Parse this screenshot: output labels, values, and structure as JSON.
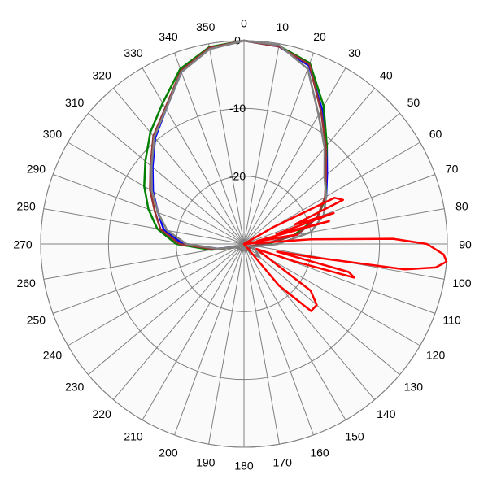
{
  "chart_data": {
    "type": "polar",
    "rlim": [
      -30,
      0
    ],
    "rticks": [
      0,
      -10,
      -20
    ],
    "thetaticks": [
      0,
      10,
      20,
      30,
      40,
      50,
      60,
      70,
      80,
      90,
      100,
      110,
      120,
      130,
      140,
      150,
      160,
      170,
      180,
      190,
      200,
      210,
      220,
      230,
      240,
      250,
      260,
      270,
      280,
      290,
      300,
      310,
      320,
      330,
      340,
      350
    ],
    "series": [
      {
        "color": "#0000ff",
        "theta": [
          0,
          10,
          20,
          30,
          40,
          50,
          60,
          70,
          80,
          90,
          100,
          110,
          120,
          130,
          140,
          150,
          160,
          170,
          180,
          190,
          200,
          210,
          220,
          230,
          240,
          250,
          260,
          270,
          280,
          290,
          300,
          310,
          320,
          330,
          340,
          350,
          360
        ],
        "values": [
          0,
          -0.4,
          -2,
          -7,
          -11,
          -14,
          -16,
          -18.5,
          -22,
          -27,
          -28.5,
          -29,
          -29,
          -29,
          -29,
          -29,
          -29,
          -29,
          -29,
          -29,
          -29,
          -29,
          -29,
          -29,
          -29,
          -28.5,
          -26,
          -21,
          -18,
          -16.5,
          -14.5,
          -12.4,
          -9.6,
          -7,
          -3,
          -0.6,
          0
        ]
      },
      {
        "color": "#008000",
        "theta": [
          0,
          10,
          20,
          30,
          40,
          50,
          60,
          70,
          80,
          90,
          100,
          110,
          120,
          130,
          140,
          150,
          160,
          170,
          180,
          190,
          200,
          210,
          220,
          230,
          240,
          250,
          260,
          270,
          280,
          290,
          300,
          310,
          320,
          330,
          340,
          350,
          360
        ],
        "values": [
          0,
          -0.3,
          -1.6,
          -6.5,
          -11,
          -14.3,
          -16,
          -18.5,
          -22.5,
          -26.5,
          -28.5,
          -29,
          -29,
          -29,
          -29,
          -29,
          -29,
          -29,
          -29,
          -29,
          -29,
          -29,
          -29,
          -29,
          -29,
          -28.5,
          -25,
          -20,
          -17,
          -15,
          -13,
          -11,
          -8.5,
          -6,
          -2.5,
          -0.5,
          0
        ]
      },
      {
        "color": "#993333",
        "theta": [
          0,
          10,
          20,
          30,
          40,
          50,
          60,
          70,
          80,
          90,
          100,
          110,
          120,
          130,
          140,
          150,
          160,
          170,
          180,
          190,
          200,
          210,
          220,
          230,
          240,
          250,
          260,
          270,
          280,
          290,
          300,
          310,
          320,
          330,
          340,
          350,
          360
        ],
        "values": [
          0,
          -0.4,
          -1.8,
          -7.3,
          -11.2,
          -14.2,
          -16.2,
          -18.5,
          -22,
          -27,
          -28.5,
          -29,
          -29,
          -29,
          -29,
          -29,
          -29,
          -29,
          -29,
          -29,
          -29,
          -29,
          -29,
          -29,
          -29,
          -28.5,
          -25.5,
          -20.5,
          -17.5,
          -16,
          -14,
          -12,
          -9.2,
          -6.8,
          -2.8,
          -0.6,
          0
        ]
      },
      {
        "color": "#808080",
        "theta": [
          0,
          10,
          20,
          30,
          40,
          50,
          60,
          70,
          80,
          90,
          100,
          110,
          120,
          130,
          140,
          150,
          160,
          170,
          180,
          190,
          200,
          210,
          220,
          230,
          240,
          250,
          260,
          270,
          280,
          290,
          300,
          310,
          320,
          330,
          340,
          350,
          360
        ],
        "values": [
          0,
          -0.2,
          -2.5,
          -8,
          -11.5,
          -14.5,
          -16,
          -17.5,
          -20,
          -25,
          -28,
          -29,
          -28,
          -27,
          -28,
          -29,
          -29,
          -29,
          -29,
          -29,
          -29,
          -29,
          -29,
          -29,
          -29,
          -28.5,
          -26,
          -21.5,
          -18.5,
          -16.5,
          -14.3,
          -12.2,
          -9.4,
          -7,
          -3,
          -0.8,
          0
        ]
      },
      {
        "color": "#ff0000",
        "theta": [
          0,
          40,
          60,
          63,
          66,
          69,
          71,
          73,
          75,
          77,
          80,
          83,
          86,
          88,
          90,
          93,
          95,
          97,
          99,
          101,
          103,
          105,
          107,
          109,
          112,
          125,
          130,
          135,
          140,
          150,
          360
        ],
        "values": [
          -30,
          -30,
          -25,
          -15,
          -14,
          -22,
          -16,
          -25,
          -17,
          -28,
          -22,
          -30,
          -20,
          -8,
          -3,
          -0.5,
          0,
          -1.5,
          -6,
          -20,
          -25,
          -14,
          -13,
          -22,
          -28,
          -18,
          -16,
          -16,
          -22,
          -30,
          -30
        ]
      }
    ]
  }
}
